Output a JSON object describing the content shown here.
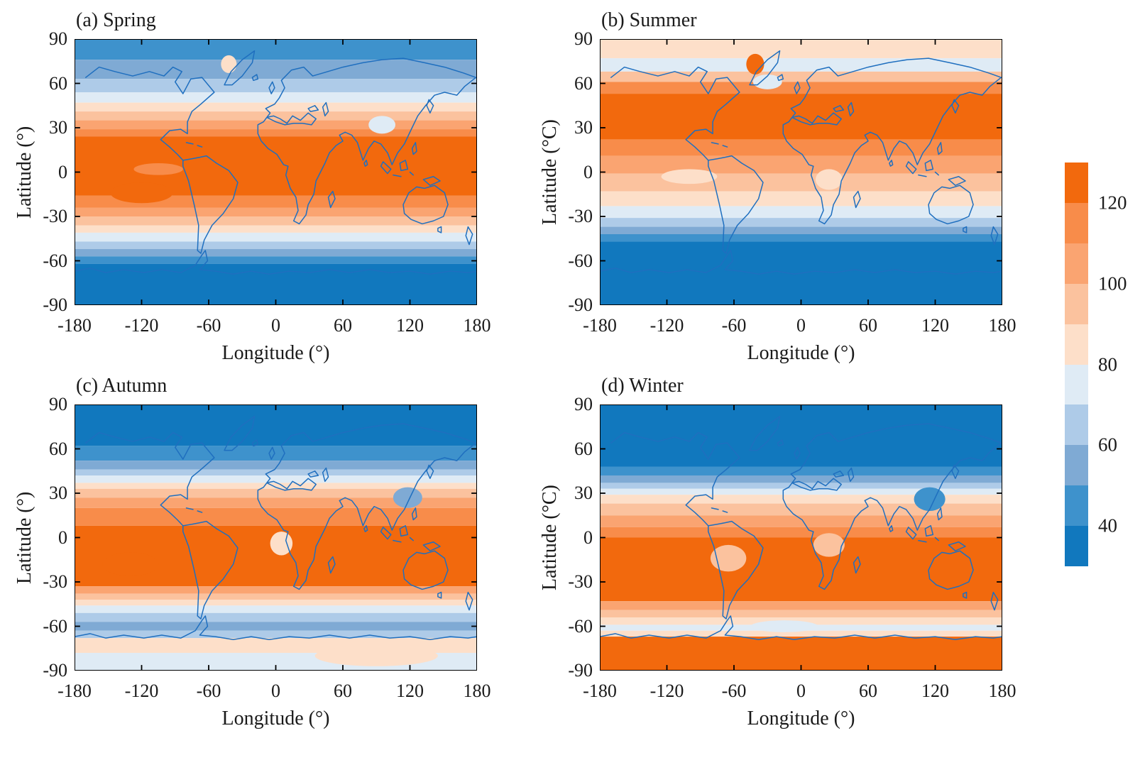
{
  "figure": {
    "background": "#ffffff"
  },
  "chart_data": {
    "type": "heatmap",
    "description": "Four-panel seasonal global filled-contour maps (equirectangular lat-lon) with a shared discrete blue-to-orange colorbar (30-130, labeled 40/60/80/100/120). Blue coastlines overlay the contour fill.",
    "axes": {
      "xlabel": "Longitude (°)",
      "xticks": [
        -180,
        -120,
        -60,
        0,
        60,
        120,
        180
      ],
      "xrange": [
        -180,
        180
      ],
      "yticks": [
        90,
        60,
        30,
        0,
        -30,
        -60,
        -90
      ],
      "yrange": [
        -90,
        90
      ]
    },
    "colorbar": {
      "min": 30,
      "max": 130,
      "step": 10,
      "tick_values": [
        120,
        100,
        80,
        60,
        40
      ],
      "colors_top_to_bottom": [
        "#f2690d",
        "#f88c4a",
        "#faa471",
        "#fbc29e",
        "#fddfc9",
        "#dfebf5",
        "#aecbe8",
        "#7faad4",
        "#3e92cc",
        "#1178be"
      ]
    },
    "style": {
      "coastline_color": "#1f6fbf",
      "frame_color": "#000000"
    },
    "panels": [
      {
        "id": "a",
        "title": "(a) Spring",
        "ylabel": "Latitude (°)",
        "bands": [
          {
            "lat_top": 90,
            "lat_bottom": 76,
            "value": 45
          },
          {
            "lat_top": 76,
            "lat_bottom": 63,
            "value": 55
          },
          {
            "lat_top": 63,
            "lat_bottom": 54,
            "value": 65
          },
          {
            "lat_top": 54,
            "lat_bottom": 47,
            "value": 75
          },
          {
            "lat_top": 47,
            "lat_bottom": 41,
            "value": 85
          },
          {
            "lat_top": 41,
            "lat_bottom": 35,
            "value": 95
          },
          {
            "lat_top": 35,
            "lat_bottom": 29,
            "value": 105
          },
          {
            "lat_top": 29,
            "lat_bottom": 24,
            "value": 115
          },
          {
            "lat_top": 24,
            "lat_bottom": -16,
            "value": 125
          },
          {
            "lat_top": -16,
            "lat_bottom": -24,
            "value": 115
          },
          {
            "lat_top": -24,
            "lat_bottom": -30,
            "value": 105
          },
          {
            "lat_top": -30,
            "lat_bottom": -36,
            "value": 95
          },
          {
            "lat_top": -36,
            "lat_bottom": -41,
            "value": 85
          },
          {
            "lat_top": -41,
            "lat_bottom": -47,
            "value": 75
          },
          {
            "lat_top": -47,
            "lat_bottom": -52,
            "value": 65
          },
          {
            "lat_top": -52,
            "lat_bottom": -57,
            "value": 55
          },
          {
            "lat_top": -57,
            "lat_bottom": -62,
            "value": 45
          },
          {
            "lat_top": -62,
            "lat_bottom": -90,
            "value": 35
          }
        ],
        "features": [
          {
            "lon": -42,
            "lat": 73,
            "rx_deg": 7,
            "ry_deg": 6,
            "value": 85,
            "note": "Greenland pale patch"
          },
          {
            "lon": -120,
            "lat": -14,
            "rx_deg": 28,
            "ry_deg": 7,
            "value": 125,
            "note": "South Pacific maximum"
          },
          {
            "lon": -105,
            "lat": 2,
            "rx_deg": 22,
            "ry_deg": 4,
            "value": 115,
            "note": "equatorial east Pacific dip"
          },
          {
            "lon": 95,
            "lat": 32,
            "rx_deg": 12,
            "ry_deg": 6,
            "value": 75,
            "note": "Tibetan Plateau pale patch"
          }
        ]
      },
      {
        "id": "b",
        "title": "(b) Summer",
        "ylabel": "Latitude (°C)",
        "bands": [
          {
            "lat_top": 90,
            "lat_bottom": 77,
            "value": 85
          },
          {
            "lat_top": 77,
            "lat_bottom": 68,
            "value": 75
          },
          {
            "lat_top": 68,
            "lat_bottom": 61,
            "value": 95
          },
          {
            "lat_top": 61,
            "lat_bottom": 53,
            "value": 115
          },
          {
            "lat_top": 53,
            "lat_bottom": 22,
            "value": 125
          },
          {
            "lat_top": 22,
            "lat_bottom": 11,
            "value": 115
          },
          {
            "lat_top": 11,
            "lat_bottom": -1,
            "value": 105
          },
          {
            "lat_top": -1,
            "lat_bottom": -13,
            "value": 95
          },
          {
            "lat_top": -13,
            "lat_bottom": -23,
            "value": 85
          },
          {
            "lat_top": -23,
            "lat_bottom": -31,
            "value": 75
          },
          {
            "lat_top": -31,
            "lat_bottom": -37,
            "value": 65
          },
          {
            "lat_top": -37,
            "lat_bottom": -42,
            "value": 55
          },
          {
            "lat_top": -42,
            "lat_bottom": -47,
            "value": 45
          },
          {
            "lat_top": -47,
            "lat_bottom": -90,
            "value": 35
          }
        ],
        "features": [
          {
            "lon": -41,
            "lat": 73,
            "rx_deg": 8,
            "ry_deg": 7,
            "value": 125,
            "note": "Greenland maximum"
          },
          {
            "lon": -30,
            "lat": 61,
            "rx_deg": 13,
            "ry_deg": 5,
            "value": 75,
            "note": "North Atlantic pale patch"
          },
          {
            "lon": -100,
            "lat": -3,
            "rx_deg": 25,
            "ry_deg": 5,
            "value": 85,
            "note": "Pacific cold tongue"
          },
          {
            "lon": 25,
            "lat": -5,
            "rx_deg": 12,
            "ry_deg": 7,
            "value": 85,
            "note": "Gulf of Guinea low"
          }
        ]
      },
      {
        "id": "c",
        "title": "(c) Autumn",
        "ylabel": "Latitude (°)",
        "bands": [
          {
            "lat_top": 90,
            "lat_bottom": 62,
            "value": 35
          },
          {
            "lat_top": 62,
            "lat_bottom": 52,
            "value": 45
          },
          {
            "lat_top": 52,
            "lat_bottom": 46,
            "value": 55
          },
          {
            "lat_top": 46,
            "lat_bottom": 42,
            "value": 65
          },
          {
            "lat_top": 42,
            "lat_bottom": 37,
            "value": 75
          },
          {
            "lat_top": 37,
            "lat_bottom": 33,
            "value": 85
          },
          {
            "lat_top": 33,
            "lat_bottom": 27,
            "value": 95
          },
          {
            "lat_top": 27,
            "lat_bottom": 20,
            "value": 105
          },
          {
            "lat_top": 20,
            "lat_bottom": 8,
            "value": 115
          },
          {
            "lat_top": 8,
            "lat_bottom": -33,
            "value": 125
          },
          {
            "lat_top": -33,
            "lat_bottom": -38,
            "value": 105
          },
          {
            "lat_top": -38,
            "lat_bottom": -42,
            "value": 95
          },
          {
            "lat_top": -42,
            "lat_bottom": -46,
            "value": 85
          },
          {
            "lat_top": -46,
            "lat_bottom": -51,
            "value": 75
          },
          {
            "lat_top": -51,
            "lat_bottom": -57,
            "value": 65
          },
          {
            "lat_top": -57,
            "lat_bottom": -63,
            "value": 55
          },
          {
            "lat_top": -63,
            "lat_bottom": -68,
            "value": 65
          },
          {
            "lat_top": -68,
            "lat_bottom": -78,
            "value": 85
          },
          {
            "lat_top": -78,
            "lat_bottom": -90,
            "value": 75
          }
        ],
        "features": [
          {
            "lon": 5,
            "lat": -4,
            "rx_deg": 10,
            "ry_deg": 8,
            "value": 85,
            "note": "Gulf of Guinea pale spot"
          },
          {
            "lon": 118,
            "lat": 27,
            "rx_deg": 13,
            "ry_deg": 7,
            "value": 55,
            "note": "East Asia low"
          },
          {
            "lon": 90,
            "lat": -80,
            "rx_deg": 55,
            "ry_deg": 7,
            "value": 85,
            "note": "East Antarctica pale"
          },
          {
            "lon": -130,
            "lat": -18,
            "rx_deg": 25,
            "ry_deg": 8,
            "value": 125,
            "note": "South Pacific maximum"
          }
        ]
      },
      {
        "id": "d",
        "title": "(d) Winter",
        "ylabel": "Latitude (°C)",
        "bands": [
          {
            "lat_top": 90,
            "lat_bottom": 48,
            "value": 35
          },
          {
            "lat_top": 48,
            "lat_bottom": 42,
            "value": 45
          },
          {
            "lat_top": 42,
            "lat_bottom": 37,
            "value": 55
          },
          {
            "lat_top": 37,
            "lat_bottom": 33,
            "value": 65
          },
          {
            "lat_top": 33,
            "lat_bottom": 29,
            "value": 75
          },
          {
            "lat_top": 29,
            "lat_bottom": 23,
            "value": 85
          },
          {
            "lat_top": 23,
            "lat_bottom": 15,
            "value": 95
          },
          {
            "lat_top": 15,
            "lat_bottom": 7,
            "value": 105
          },
          {
            "lat_top": 7,
            "lat_bottom": 0,
            "value": 115
          },
          {
            "lat_top": 0,
            "lat_bottom": -43,
            "value": 125
          },
          {
            "lat_top": -43,
            "lat_bottom": -49,
            "value": 105
          },
          {
            "lat_top": -49,
            "lat_bottom": -54,
            "value": 95
          },
          {
            "lat_top": -54,
            "lat_bottom": -59,
            "value": 85
          },
          {
            "lat_top": -59,
            "lat_bottom": -63,
            "value": 75
          },
          {
            "lat_top": -63,
            "lat_bottom": -67,
            "value": 85
          },
          {
            "lat_top": -67,
            "lat_bottom": -90,
            "value": 125
          }
        ],
        "features": [
          {
            "lon": 115,
            "lat": 26,
            "rx_deg": 14,
            "ry_deg": 8,
            "value": 45,
            "note": "East Asia cold extension"
          },
          {
            "lon": -65,
            "lat": -14,
            "rx_deg": 16,
            "ry_deg": 9,
            "value": 95,
            "note": "South America interior pale"
          },
          {
            "lon": 25,
            "lat": -5,
            "rx_deg": 14,
            "ry_deg": 8,
            "value": 95,
            "note": "central Africa pale"
          },
          {
            "lon": -15,
            "lat": -60,
            "rx_deg": 30,
            "ry_deg": 4,
            "value": 75,
            "note": "Southern Ocean pale band"
          }
        ]
      }
    ]
  }
}
